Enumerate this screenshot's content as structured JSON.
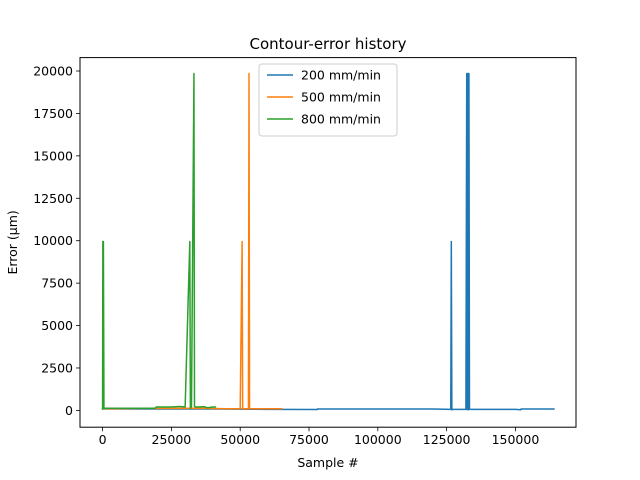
{
  "chart_data": {
    "type": "line",
    "title": "Contour-error history",
    "xlabel": "Sample #",
    "ylabel": "Error (µm)",
    "xlim": [
      -8200,
      172000
    ],
    "ylim": [
      -990,
      20790
    ],
    "xticks": [
      0,
      25000,
      50000,
      75000,
      100000,
      125000,
      150000
    ],
    "yticks": [
      0,
      2500,
      5000,
      7500,
      10000,
      12500,
      15000,
      17500,
      20000
    ],
    "grid": false,
    "legend_position": "top-center",
    "series": [
      {
        "name": "200 mm/min",
        "color": "#1f77b4",
        "x": [
          0,
          5000,
          20000,
          40000,
          60000,
          78000,
          78001,
          100000,
          120000,
          126500,
          126700,
          126900,
          127100,
          127300,
          132000,
          132300,
          132500,
          132700,
          132900,
          133100,
          133300,
          140000,
          150000,
          152000,
          152001,
          164000
        ],
        "y": [
          80,
          80,
          80,
          80,
          60,
          50,
          80,
          80,
          80,
          60,
          9950,
          30,
          60,
          60,
          60,
          19850,
          40,
          19850,
          40,
          19850,
          60,
          60,
          60,
          40,
          80,
          80
        ]
      },
      {
        "name": "500 mm/min",
        "color": "#ff7f0e",
        "x": [
          0,
          5000,
          15000,
          25000,
          35000,
          45000,
          50000,
          50700,
          50900,
          51100,
          53000,
          53200,
          53400,
          55000,
          60000,
          65000
        ],
        "y": [
          100,
          100,
          120,
          120,
          130,
          100,
          100,
          9950,
          50,
          100,
          100,
          19850,
          100,
          100,
          100,
          100
        ]
      },
      {
        "name": "800 mm/min",
        "color": "#2ca02c",
        "x": [
          0,
          100,
          200,
          300,
          500,
          1000,
          5000,
          10000,
          19000,
          19500,
          25000,
          28000,
          30000,
          31700,
          31900,
          32100,
          32300,
          33200,
          33400,
          33600,
          35000,
          37000,
          38000,
          40000,
          41000
        ],
        "y": [
          100,
          9950,
          100,
          9950,
          100,
          130,
          130,
          130,
          130,
          200,
          200,
          230,
          200,
          9950,
          100,
          200,
          200,
          19850,
          250,
          200,
          200,
          220,
          150,
          200,
          200
        ]
      }
    ]
  }
}
